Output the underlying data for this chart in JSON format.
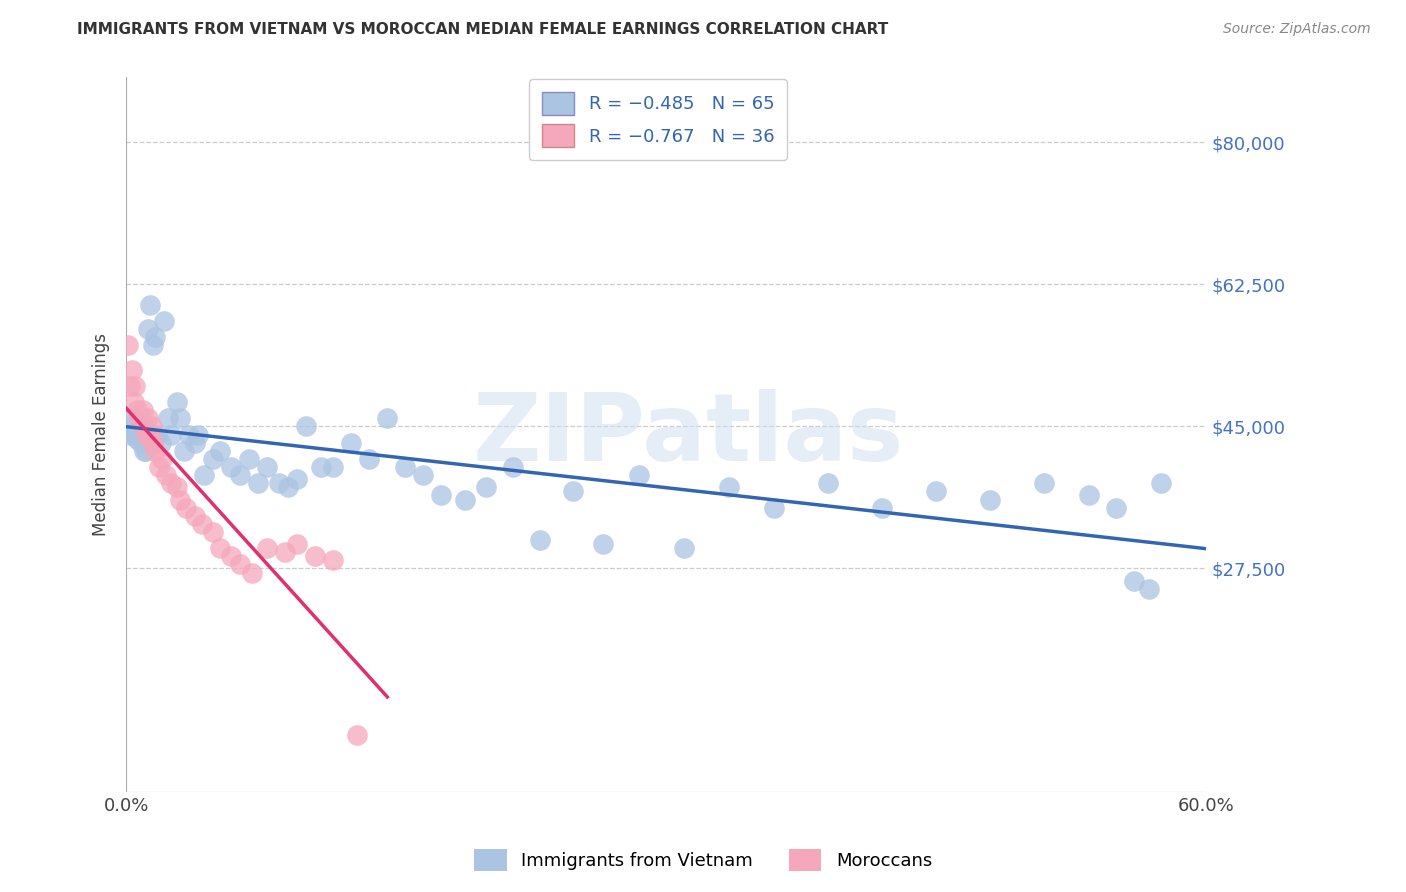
{
  "title": "IMMIGRANTS FROM VIETNAM VS MOROCCAN MEDIAN FEMALE EARNINGS CORRELATION CHART",
  "source": "Source: ZipAtlas.com",
  "ylabel": "Median Female Earnings",
  "xlim": [
    0,
    0.6
  ],
  "ylim": [
    0,
    88000
  ],
  "yticks": [
    27500,
    45000,
    62500,
    80000
  ],
  "ytick_labels": [
    "$27,500",
    "$45,000",
    "$62,500",
    "$80,000"
  ],
  "xticks": [
    0.0,
    0.1,
    0.2,
    0.3,
    0.4,
    0.5,
    0.6
  ],
  "xtick_labels": [
    "0.0%",
    "",
    "",
    "",
    "",
    "",
    "60.0%"
  ],
  "watermark": "ZIPatlas",
  "legend_vietnam": "R = −0.485   N = 65",
  "legend_morocco": "R = −0.767   N = 36",
  "color_vietnam": "#aac4e2",
  "color_morocco": "#f5a7bb",
  "color_line_vietnam": "#3465b0",
  "color_line_morocco": "#e03070",
  "color_ytick_labels": "#4472c4",
  "color_title": "#333333",
  "background_color": "#ffffff",
  "vietnam_x": [
    0.002,
    0.003,
    0.004,
    0.005,
    0.006,
    0.007,
    0.008,
    0.009,
    0.01,
    0.011,
    0.012,
    0.013,
    0.015,
    0.016,
    0.017,
    0.019,
    0.021,
    0.023,
    0.025,
    0.028,
    0.03,
    0.032,
    0.035,
    0.038,
    0.04,
    0.043,
    0.048,
    0.052,
    0.058,
    0.063,
    0.068,
    0.073,
    0.078,
    0.085,
    0.09,
    0.095,
    0.1,
    0.108,
    0.115,
    0.125,
    0.135,
    0.145,
    0.155,
    0.165,
    0.175,
    0.188,
    0.2,
    0.215,
    0.23,
    0.248,
    0.265,
    0.285,
    0.31,
    0.335,
    0.36,
    0.39,
    0.42,
    0.45,
    0.48,
    0.51,
    0.535,
    0.55,
    0.56,
    0.568,
    0.575
  ],
  "vietnam_y": [
    44000,
    45000,
    46000,
    44000,
    43500,
    44000,
    43000,
    44500,
    42000,
    42000,
    57000,
    60000,
    55000,
    56000,
    44000,
    43000,
    58000,
    46000,
    44000,
    48000,
    46000,
    42000,
    44000,
    43000,
    44000,
    39000,
    41000,
    42000,
    40000,
    39000,
    41000,
    38000,
    40000,
    38000,
    37500,
    38500,
    45000,
    40000,
    40000,
    43000,
    41000,
    46000,
    40000,
    39000,
    36500,
    36000,
    37500,
    40000,
    31000,
    37000,
    30500,
    39000,
    30000,
    37500,
    35000,
    38000,
    35000,
    37000,
    36000,
    38000,
    36500,
    35000,
    26000,
    25000,
    38000
  ],
  "morocco_x": [
    0.001,
    0.002,
    0.003,
    0.004,
    0.005,
    0.006,
    0.007,
    0.008,
    0.009,
    0.01,
    0.011,
    0.012,
    0.013,
    0.014,
    0.015,
    0.016,
    0.018,
    0.02,
    0.022,
    0.025,
    0.028,
    0.03,
    0.033,
    0.038,
    0.042,
    0.048,
    0.052,
    0.058,
    0.063,
    0.07,
    0.078,
    0.088,
    0.095,
    0.105,
    0.115,
    0.128
  ],
  "morocco_y": [
    55000,
    50000,
    52000,
    48000,
    50000,
    47000,
    46000,
    45500,
    47000,
    45000,
    44000,
    46000,
    44000,
    45000,
    43000,
    42000,
    40000,
    41000,
    39000,
    38000,
    37500,
    36000,
    35000,
    34000,
    33000,
    32000,
    30000,
    29000,
    28000,
    27000,
    30000,
    29500,
    30500,
    29000,
    28500,
    7000
  ]
}
